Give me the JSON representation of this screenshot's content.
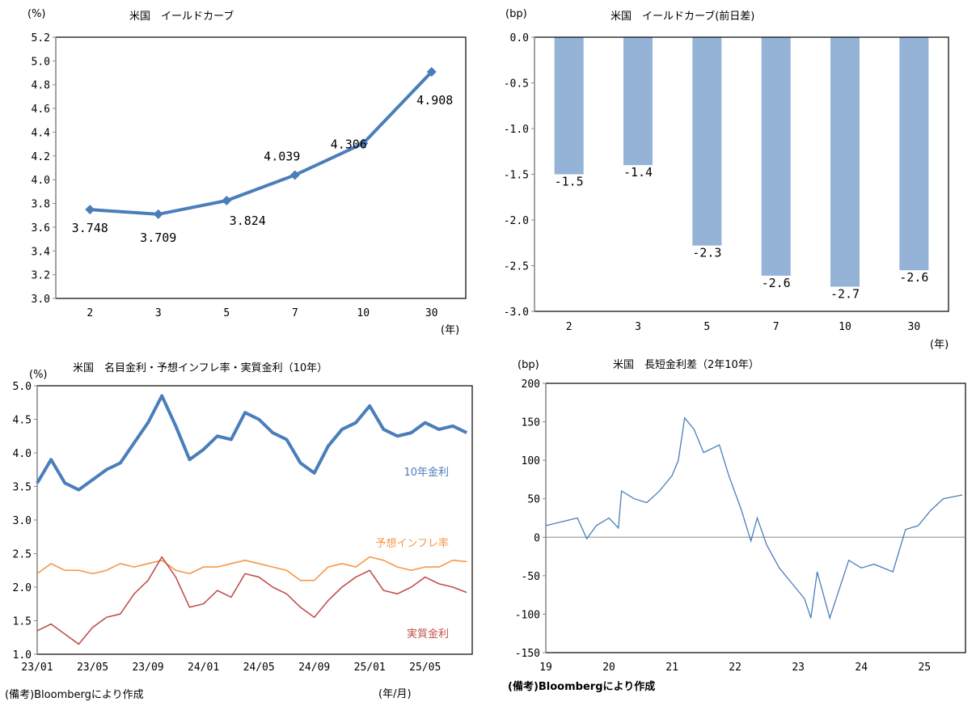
{
  "chart_data": [
    {
      "type": "line",
      "title": "米国　イールドカーブ",
      "ylabel": "(%)",
      "xlabel": "(年)",
      "categories": [
        "2",
        "3",
        "5",
        "7",
        "10",
        "30"
      ],
      "values": [
        3.748,
        3.709,
        3.824,
        4.039,
        4.306,
        4.908
      ],
      "labels": [
        "3.748",
        "3.709",
        "3.824",
        "4.039",
        "4.306",
        "4.908"
      ],
      "ylim": [
        3.0,
        5.2
      ],
      "yticks": [
        "3.0",
        "3.2",
        "3.4",
        "3.6",
        "3.8",
        "4.0",
        "4.2",
        "4.4",
        "4.6",
        "4.8",
        "5.0",
        "5.2"
      ],
      "color": "#4a7ebb",
      "grid": false
    },
    {
      "type": "bar",
      "title": "米国　イールドカーブ(前日差)",
      "ylabel": "(bp)",
      "xlabel": "(年)",
      "categories": [
        "2",
        "3",
        "5",
        "7",
        "10",
        "30"
      ],
      "values": [
        -1.5,
        -1.4,
        -2.28,
        -2.61,
        -2.73,
        -2.55
      ],
      "labels": [
        "-1.5",
        "-1.4",
        "-2.3",
        "-2.6",
        "-2.7",
        "-2.6"
      ],
      "ylim": [
        -3.0,
        0.0
      ],
      "yticks": [
        "0.0",
        "-0.5",
        "-1.0",
        "-1.5",
        "-2.0",
        "-2.5",
        "-3.0"
      ],
      "color": "#95b3d7",
      "grid": false
    },
    {
      "type": "line",
      "title": "米国　名目金利・予想インフレ率・実質金利（10年）",
      "ylabel": "(%)",
      "xlabel": "(年/月)",
      "ylim": [
        1.0,
        5.0
      ],
      "yticks": [
        "1.0",
        "1.5",
        "2.0",
        "2.5",
        "3.0",
        "3.5",
        "4.0",
        "4.5",
        "5.0"
      ],
      "xticks": [
        "23/01",
        "23/05",
        "23/09",
        "24/01",
        "24/05",
        "24/09",
        "25/01",
        "25/05"
      ],
      "x": [
        "23/01",
        "23/02",
        "23/03",
        "23/04",
        "23/05",
        "23/06",
        "23/07",
        "23/08",
        "23/09",
        "23/10",
        "23/11",
        "23/12",
        "24/01",
        "24/02",
        "24/03",
        "24/04",
        "24/05",
        "24/06",
        "24/07",
        "24/08",
        "24/09",
        "24/10",
        "24/11",
        "24/12",
        "25/01",
        "25/02",
        "25/03",
        "25/04",
        "25/05",
        "25/06",
        "25/07",
        "25/08"
      ],
      "series": [
        {
          "name": "10年金利",
          "color": "#4a7ebb",
          "values": [
            3.55,
            3.9,
            3.55,
            3.45,
            3.6,
            3.75,
            3.85,
            4.15,
            4.45,
            4.85,
            4.4,
            3.9,
            4.05,
            4.25,
            4.2,
            4.6,
            4.5,
            4.3,
            4.2,
            3.85,
            3.7,
            4.1,
            4.35,
            4.45,
            4.7,
            4.35,
            4.25,
            4.3,
            4.45,
            4.35,
            4.4,
            4.3
          ]
        },
        {
          "name": "予想インフレ率",
          "color": "#f79646",
          "values": [
            2.2,
            2.35,
            2.25,
            2.25,
            2.2,
            2.25,
            2.35,
            2.3,
            2.35,
            2.4,
            2.25,
            2.2,
            2.3,
            2.3,
            2.35,
            2.4,
            2.35,
            2.3,
            2.25,
            2.1,
            2.1,
            2.3,
            2.35,
            2.3,
            2.45,
            2.4,
            2.3,
            2.25,
            2.3,
            2.3,
            2.4,
            2.38
          ]
        },
        {
          "name": "実質金利",
          "color": "#c0504d",
          "values": [
            1.35,
            1.45,
            1.3,
            1.15,
            1.4,
            1.55,
            1.6,
            1.9,
            2.1,
            2.45,
            2.15,
            1.7,
            1.75,
            1.95,
            1.85,
            2.2,
            2.15,
            2.0,
            1.9,
            1.7,
            1.55,
            1.8,
            2.0,
            2.15,
            2.25,
            1.95,
            1.9,
            2.0,
            2.15,
            2.05,
            2.0,
            1.92
          ]
        }
      ],
      "grid": false
    },
    {
      "type": "line",
      "title": "米国　長短金利差（2年10年）",
      "ylabel": "(bp)",
      "ylim": [
        -150,
        200
      ],
      "yticks": [
        "200",
        "150",
        "100",
        "50",
        "0",
        "-50",
        "-100",
        "-150"
      ],
      "xticks": [
        "19",
        "20",
        "21",
        "22",
        "23",
        "24",
        "25"
      ],
      "x": [
        19.0,
        19.25,
        19.5,
        19.65,
        19.8,
        20.0,
        20.15,
        20.2,
        20.4,
        20.6,
        20.8,
        21.0,
        21.1,
        21.2,
        21.35,
        21.5,
        21.75,
        21.9,
        22.1,
        22.25,
        22.35,
        22.5,
        22.7,
        22.9,
        23.1,
        23.2,
        23.3,
        23.5,
        23.6,
        23.8,
        24.0,
        24.2,
        24.5,
        24.7,
        24.9,
        25.1,
        25.3,
        25.6
      ],
      "series": [
        {
          "name": "2年10年",
          "color": "#4a7ebb",
          "values": [
            15,
            20,
            25,
            -2,
            15,
            25,
            12,
            60,
            50,
            45,
            60,
            80,
            100,
            155,
            140,
            110,
            120,
            80,
            35,
            -5,
            25,
            -10,
            -40,
            -60,
            -80,
            -105,
            -45,
            -105,
            -80,
            -30,
            -40,
            -35,
            -45,
            10,
            15,
            35,
            50,
            55
          ]
        }
      ],
      "zero_line": true,
      "grid": false
    }
  ],
  "notes": {
    "source_left": "(備考)Bloombergにより作成",
    "source_right": "(備考)Bloombergにより作成"
  }
}
